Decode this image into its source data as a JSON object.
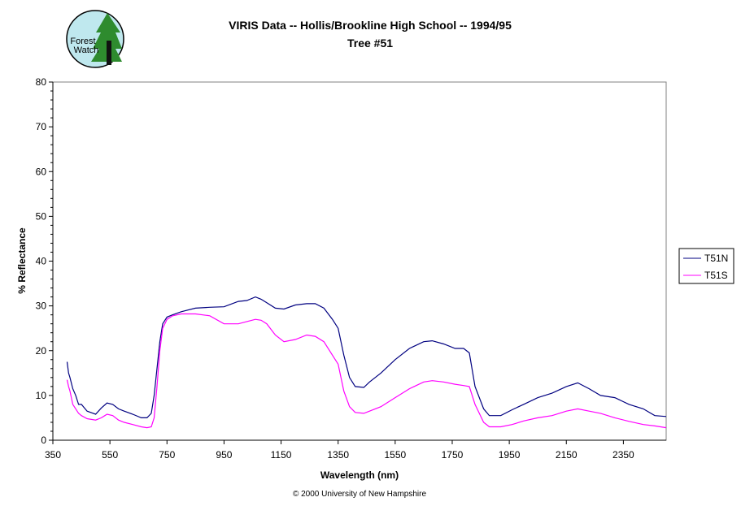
{
  "logo": {
    "text_line1": "Forest",
    "text_line2": "Watch"
  },
  "footer": {
    "copyright": "© 2000 University of New Hampshire"
  },
  "chart_data": {
    "type": "line",
    "title": "VIRIS Data -- Hollis/Brookline High School -- 1994/95",
    "subtitle": "Tree #51",
    "xlabel": "Wavelength (nm)",
    "ylabel": "% Reflectance",
    "xlim": [
      350,
      2500
    ],
    "ylim": [
      0,
      80
    ],
    "xticks": [
      350,
      550,
      750,
      950,
      1150,
      1350,
      1550,
      1750,
      1950,
      2150,
      2350
    ],
    "yticks": [
      0,
      10,
      20,
      30,
      40,
      50,
      60,
      70,
      80
    ],
    "grid": false,
    "legend_position": "right",
    "series": [
      {
        "name": "T51N",
        "color": "#000080",
        "x": [
          400,
          405,
          410,
          420,
          430,
          440,
          450,
          470,
          500,
          520,
          540,
          560,
          580,
          600,
          630,
          660,
          680,
          695,
          705,
          715,
          725,
          735,
          750,
          770,
          800,
          850,
          900,
          950,
          1000,
          1030,
          1060,
          1080,
          1100,
          1130,
          1160,
          1200,
          1240,
          1270,
          1300,
          1330,
          1350,
          1370,
          1390,
          1410,
          1440,
          1460,
          1500,
          1550,
          1600,
          1650,
          1680,
          1720,
          1760,
          1790,
          1810,
          1830,
          1860,
          1880,
          1920,
          1960,
          2000,
          2050,
          2100,
          2150,
          2190,
          2230,
          2270,
          2320,
          2370,
          2420,
          2460,
          2500
        ],
        "y": [
          17.5,
          15,
          14,
          11.5,
          10,
          8,
          8,
          6.5,
          5.8,
          7.2,
          8.3,
          8,
          7,
          6.5,
          5.8,
          5,
          5,
          6,
          10,
          16,
          22,
          26,
          27.5,
          28,
          28.7,
          29.5,
          29.7,
          29.8,
          31,
          31.2,
          32,
          31.5,
          30.7,
          29.5,
          29.3,
          30.2,
          30.5,
          30.5,
          29.5,
          27,
          25,
          19,
          14,
          12,
          11.8,
          13,
          15,
          18,
          20.5,
          22,
          22.2,
          21.5,
          20.5,
          20.5,
          19.5,
          12,
          7,
          5.5,
          5.5,
          6.8,
          8,
          9.5,
          10.5,
          12,
          12.8,
          11.5,
          10,
          9.5,
          8,
          7,
          5.5,
          5.3
        ]
      },
      {
        "name": "T51S",
        "color": "#FF00FF",
        "x": [
          400,
          405,
          410,
          420,
          430,
          440,
          450,
          470,
          500,
          520,
          540,
          560,
          580,
          600,
          630,
          660,
          680,
          695,
          705,
          715,
          725,
          735,
          750,
          770,
          800,
          850,
          900,
          950,
          1000,
          1030,
          1060,
          1080,
          1100,
          1130,
          1160,
          1200,
          1240,
          1270,
          1300,
          1330,
          1350,
          1370,
          1390,
          1410,
          1440,
          1460,
          1500,
          1550,
          1600,
          1650,
          1680,
          1720,
          1760,
          1790,
          1810,
          1830,
          1860,
          1880,
          1920,
          1960,
          2000,
          2050,
          2100,
          2150,
          2190,
          2230,
          2270,
          2320,
          2370,
          2420,
          2460,
          2500
        ],
        "y": [
          13.5,
          12,
          11,
          8,
          7,
          6,
          5.5,
          4.8,
          4.5,
          5,
          5.8,
          5.5,
          4.5,
          4,
          3.5,
          3,
          2.8,
          3,
          5,
          12,
          20,
          25,
          27,
          27.8,
          28.2,
          28.2,
          27.8,
          26,
          26,
          26.5,
          27,
          26.8,
          26,
          23.5,
          22,
          22.5,
          23.5,
          23.2,
          22,
          19,
          17,
          11,
          7.5,
          6.2,
          6,
          6.5,
          7.5,
          9.5,
          11.5,
          13,
          13.3,
          13,
          12.5,
          12.2,
          12,
          8,
          4,
          3,
          3,
          3.5,
          4.3,
          5,
          5.5,
          6.5,
          7,
          6.5,
          6,
          5,
          4.2,
          3.5,
          3.2,
          2.8
        ]
      }
    ]
  }
}
